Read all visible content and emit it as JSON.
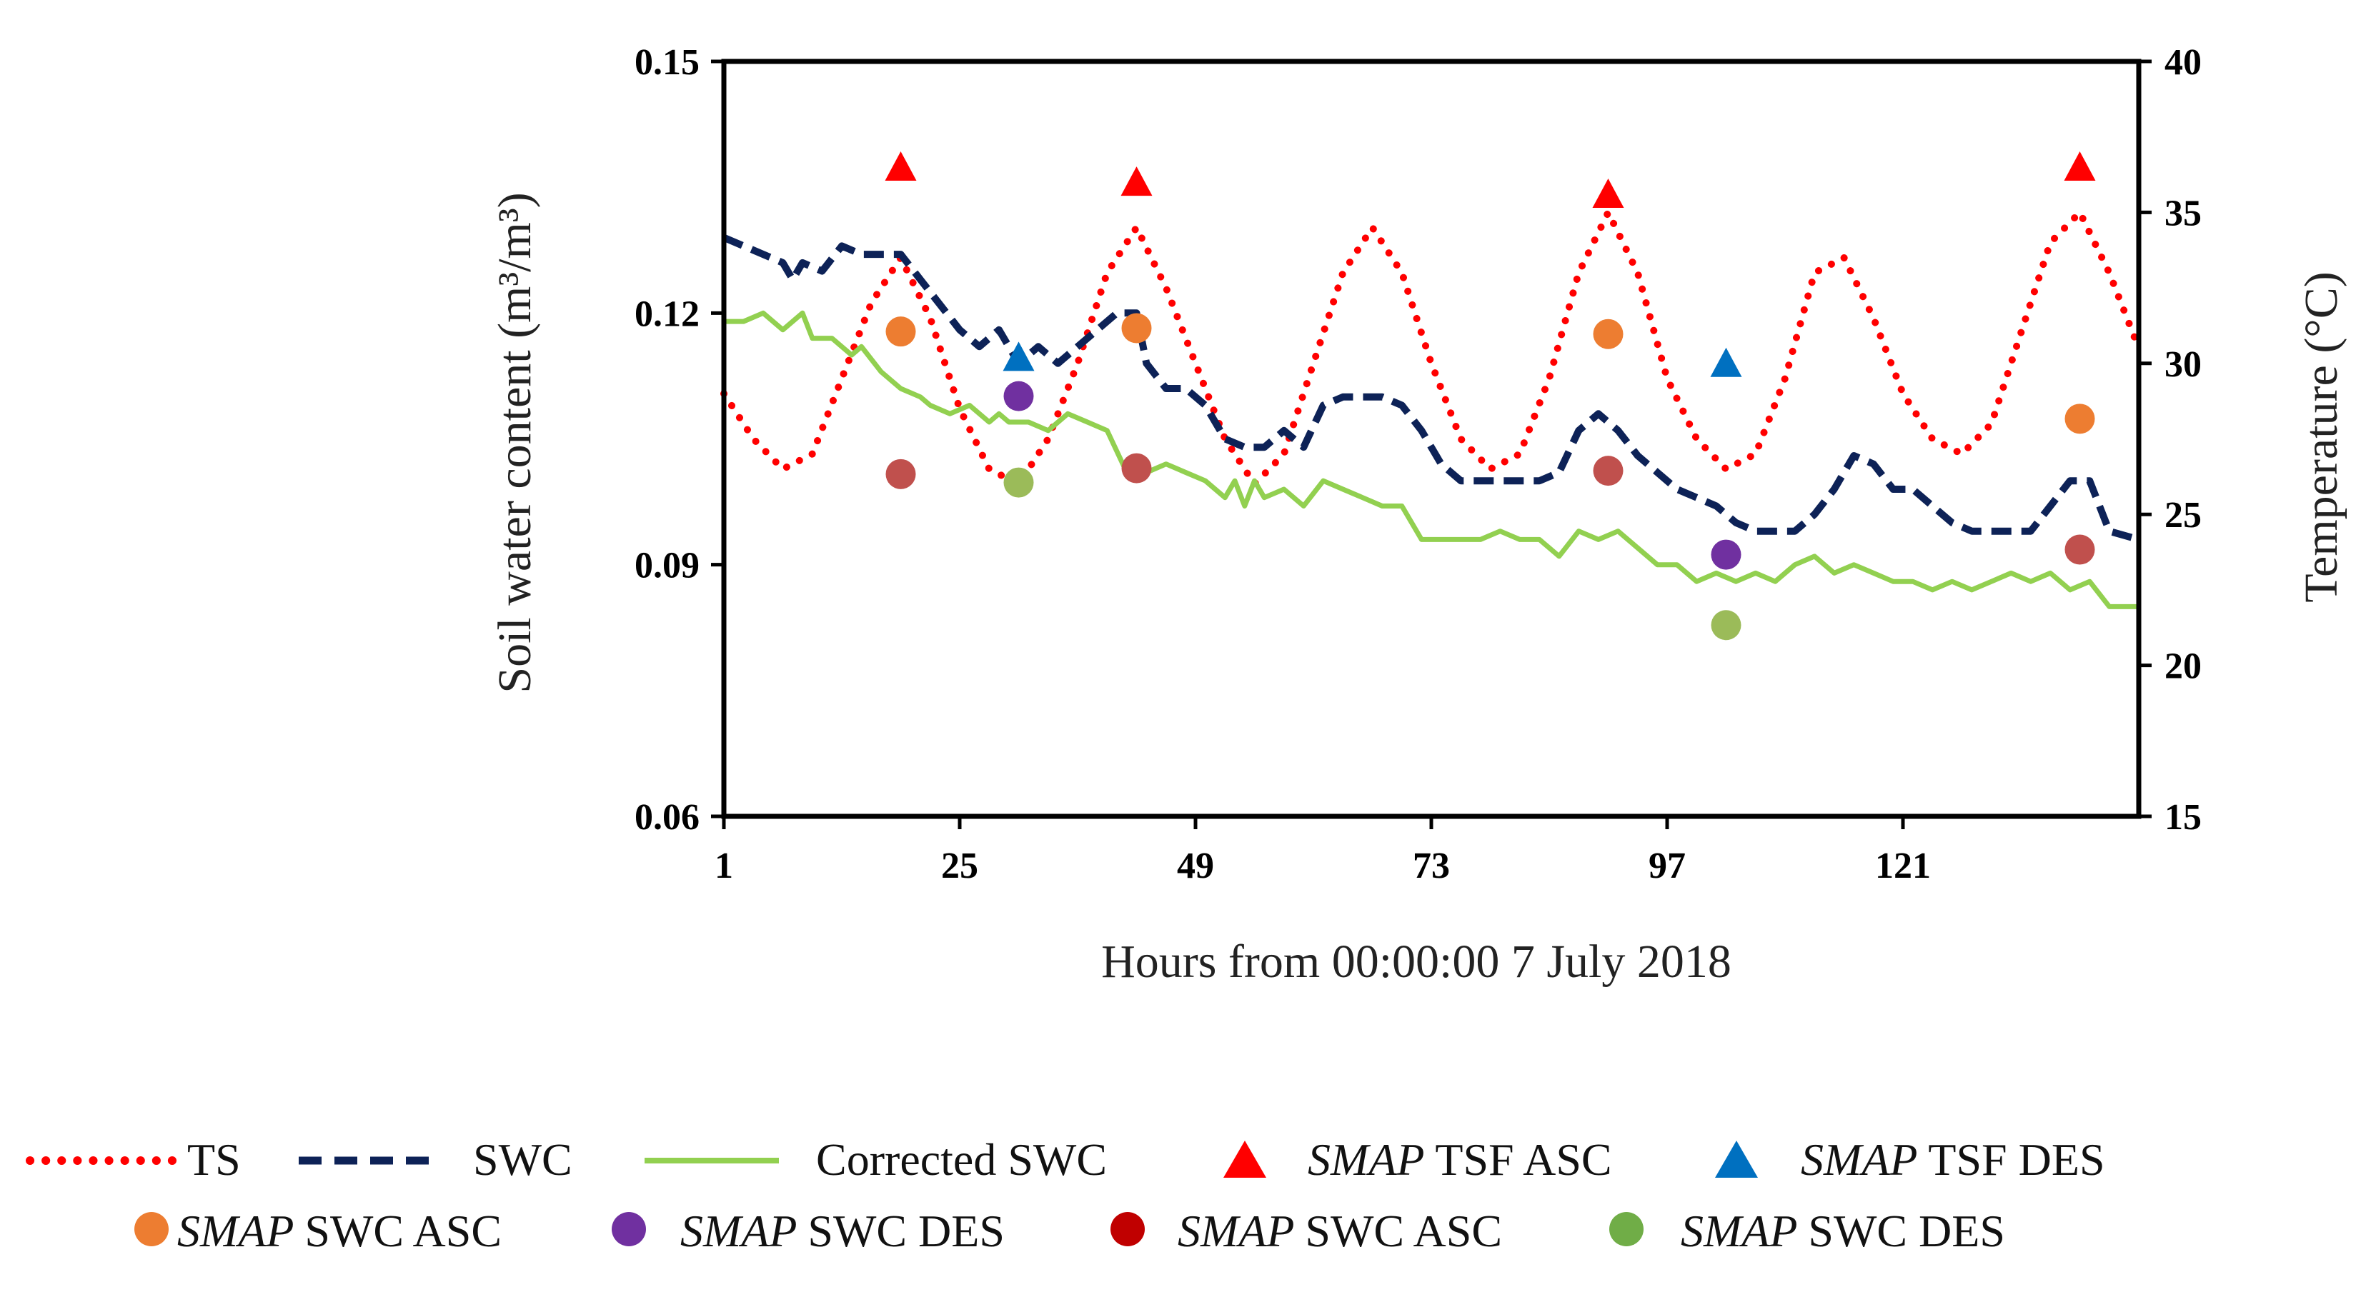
{
  "chart_data": {
    "type": "line",
    "title": "",
    "xlabel": "Hours from 00:00:00 7 July 2018",
    "ylabel_left": "Soil water content (m³/m³)",
    "ylabel_right": "Temperature (°C)",
    "xlim": [
      1,
      145
    ],
    "ylim_left": [
      0.06,
      0.15
    ],
    "ylim_right": [
      15,
      40
    ],
    "x_ticks": [
      "1",
      "25",
      "49",
      "73",
      "97",
      "121"
    ],
    "x_tick_values": [
      1,
      25,
      49,
      73,
      97,
      121
    ],
    "y_left_ticks": [
      "0.06",
      "0.09",
      "0.12",
      "0.15"
    ],
    "y_left_tick_values": [
      0.06,
      0.09,
      0.12,
      0.15
    ],
    "y_right_ticks": [
      "15",
      "20",
      "25",
      "30",
      "35",
      "40"
    ],
    "y_right_tick_values": [
      15,
      20,
      25,
      30,
      35,
      40
    ],
    "grid": false,
    "legend_position": "bottom",
    "series": [
      {
        "name": "TS",
        "axis": "right",
        "style": "dotted",
        "color": "#ff0000",
        "x": [
          1,
          4,
          7,
          10,
          13,
          16,
          19,
          22,
          25,
          28,
          31,
          34,
          37,
          40,
          43,
          46,
          49,
          52,
          55,
          58,
          61,
          64,
          67,
          70,
          73,
          76,
          79,
          82,
          85,
          88,
          91,
          94,
          97,
          100,
          103,
          106,
          109,
          112,
          115,
          118,
          121,
          124,
          127,
          130,
          133,
          136,
          139,
          142,
          145
        ],
        "values": [
          29,
          27.5,
          26.5,
          27,
          29.5,
          32,
          33.5,
          31.5,
          28.5,
          26.5,
          26,
          27.5,
          30,
          33,
          34.5,
          32.5,
          30,
          27.5,
          26,
          27,
          30,
          33,
          34.5,
          33,
          30,
          27.5,
          26.5,
          27,
          29.5,
          33,
          35,
          33,
          29.5,
          27.5,
          26.5,
          27,
          29.5,
          33,
          33.5,
          31.5,
          29,
          27.5,
          27,
          28,
          31,
          34,
          35,
          33,
          30.5
        ]
      },
      {
        "name": "SWC",
        "axis": "left",
        "style": "dashed",
        "color": "#0d2257",
        "x": [
          1,
          3,
          5,
          7,
          8,
          9,
          11,
          13,
          15,
          17,
          19,
          21,
          23,
          25,
          27,
          29,
          31,
          33,
          35,
          37,
          39,
          41,
          43,
          44,
          46,
          48,
          50,
          52,
          54,
          56,
          58,
          60,
          62,
          64,
          66,
          68,
          70,
          72,
          74,
          76,
          78,
          80,
          82,
          84,
          86,
          88,
          90,
          92,
          94,
          96,
          98,
          100,
          102,
          104,
          106,
          108,
          110,
          112,
          114,
          116,
          118,
          120,
          122,
          124,
          126,
          128,
          130,
          132,
          134,
          136,
          138,
          140,
          142,
          145
        ],
        "values": [
          0.129,
          0.128,
          0.127,
          0.126,
          0.124,
          0.126,
          0.125,
          0.128,
          0.127,
          0.127,
          0.127,
          0.124,
          0.121,
          0.118,
          0.116,
          0.118,
          0.114,
          0.116,
          0.114,
          0.116,
          0.118,
          0.12,
          0.12,
          0.114,
          0.111,
          0.111,
          0.109,
          0.105,
          0.104,
          0.104,
          0.106,
          0.104,
          0.109,
          0.11,
          0.11,
          0.11,
          0.109,
          0.106,
          0.102,
          0.1,
          0.1,
          0.1,
          0.1,
          0.1,
          0.101,
          0.106,
          0.108,
          0.106,
          0.103,
          0.101,
          0.099,
          0.098,
          0.097,
          0.095,
          0.094,
          0.094,
          0.094,
          0.096,
          0.099,
          0.103,
          0.102,
          0.099,
          0.099,
          0.097,
          0.095,
          0.094,
          0.094,
          0.094,
          0.094,
          0.097,
          0.1,
          0.1,
          0.094,
          0.093
        ]
      },
      {
        "name": "Corrected SWC",
        "axis": "left",
        "style": "solid",
        "color": "#92d050",
        "x": [
          1,
          3,
          5,
          7,
          9,
          10,
          12,
          14,
          15,
          17,
          19,
          21,
          22,
          24,
          26,
          28,
          29,
          30,
          32,
          34,
          36,
          38,
          40,
          42,
          44,
          46,
          48,
          50,
          52,
          53,
          54,
          55,
          56,
          58,
          60,
          62,
          64,
          66,
          68,
          70,
          72,
          74,
          76,
          78,
          80,
          82,
          84,
          86,
          88,
          90,
          92,
          94,
          96,
          98,
          100,
          102,
          104,
          106,
          108,
          110,
          112,
          114,
          116,
          118,
          120,
          122,
          124,
          126,
          128,
          130,
          132,
          134,
          136,
          138,
          140,
          142,
          145
        ],
        "values": [
          0.119,
          0.119,
          0.12,
          0.118,
          0.12,
          0.117,
          0.117,
          0.115,
          0.116,
          0.113,
          0.111,
          0.11,
          0.109,
          0.108,
          0.109,
          0.107,
          0.108,
          0.107,
          0.107,
          0.106,
          0.108,
          0.107,
          0.106,
          0.101,
          0.101,
          0.102,
          0.101,
          0.1,
          0.098,
          0.1,
          0.097,
          0.1,
          0.098,
          0.099,
          0.097,
          0.1,
          0.099,
          0.098,
          0.097,
          0.097,
          0.093,
          0.093,
          0.093,
          0.093,
          0.094,
          0.093,
          0.093,
          0.091,
          0.094,
          0.093,
          0.094,
          0.092,
          0.09,
          0.09,
          0.088,
          0.089,
          0.088,
          0.089,
          0.088,
          0.09,
          0.091,
          0.089,
          0.09,
          0.089,
          0.088,
          0.088,
          0.087,
          0.088,
          0.087,
          0.088,
          0.089,
          0.088,
          0.089,
          0.087,
          0.088,
          0.085,
          0.085
        ]
      },
      {
        "name": "SMAP TSF ASC",
        "axis": "right",
        "style": "marker-triangle",
        "color": "#ff0000",
        "x": [
          19,
          43,
          91,
          139
        ],
        "values": [
          36.5,
          36,
          35.6,
          36.5
        ]
      },
      {
        "name": "SMAP TSF DES",
        "axis": "right",
        "style": "marker-triangle",
        "color": "#0070c0",
        "x": [
          31,
          103
        ],
        "values": [
          30.2,
          30
        ]
      },
      {
        "name": "SMAP SWC ASC",
        "axis": "left",
        "style": "marker-circle",
        "color": "#ed7d31",
        "x": [
          19,
          43,
          91,
          139
        ],
        "values": [
          0.1178,
          0.1182,
          0.1175,
          0.1074
        ]
      },
      {
        "name": "SMAP SWC DES",
        "axis": "left",
        "style": "marker-circle",
        "color": "#7030a0",
        "x": [
          31,
          103
        ],
        "values": [
          0.1101,
          0.0912
        ]
      },
      {
        "name": "SMAP SWC ASC",
        "axis": "left",
        "style": "marker-circle",
        "color": "#c0504d",
        "x": [
          19,
          43,
          91,
          139
        ],
        "values": [
          0.1008,
          0.1015,
          0.1012,
          0.0918
        ]
      },
      {
        "name": "SMAP SWC DES",
        "axis": "left",
        "style": "marker-circle",
        "color": "#9bbb59",
        "x": [
          31,
          103
        ],
        "values": [
          0.0998,
          0.0828
        ]
      }
    ]
  },
  "legend": [
    {
      "italic": "",
      "text": "TS",
      "symbol": "dotted-line",
      "color": "#ff0000"
    },
    {
      "italic": "",
      "text": "SWC",
      "symbol": "dashed-line",
      "color": "#0d2257"
    },
    {
      "italic": "",
      "text": "Corrected SWC",
      "symbol": "solid-line",
      "color": "#92d050"
    },
    {
      "italic": "SMAP",
      "text": "TSF ASC",
      "symbol": "triangle",
      "color": "#ff0000"
    },
    {
      "italic": "SMAP",
      "text": "TSF DES",
      "symbol": "triangle",
      "color": "#0070c0"
    },
    {
      "italic": "SMAP",
      "text": "SWC ASC",
      "symbol": "circle",
      "color": "#ed7d31"
    },
    {
      "italic": "SMAP",
      "text": "SWC DES",
      "symbol": "circle",
      "color": "#7030a0"
    },
    {
      "italic": "SMAP",
      "text": "SWC ASC",
      "symbol": "circle",
      "color": "#c00000"
    },
    {
      "italic": "SMAP",
      "text": "SWC DES",
      "symbol": "circle",
      "color": "#70ad47"
    }
  ]
}
